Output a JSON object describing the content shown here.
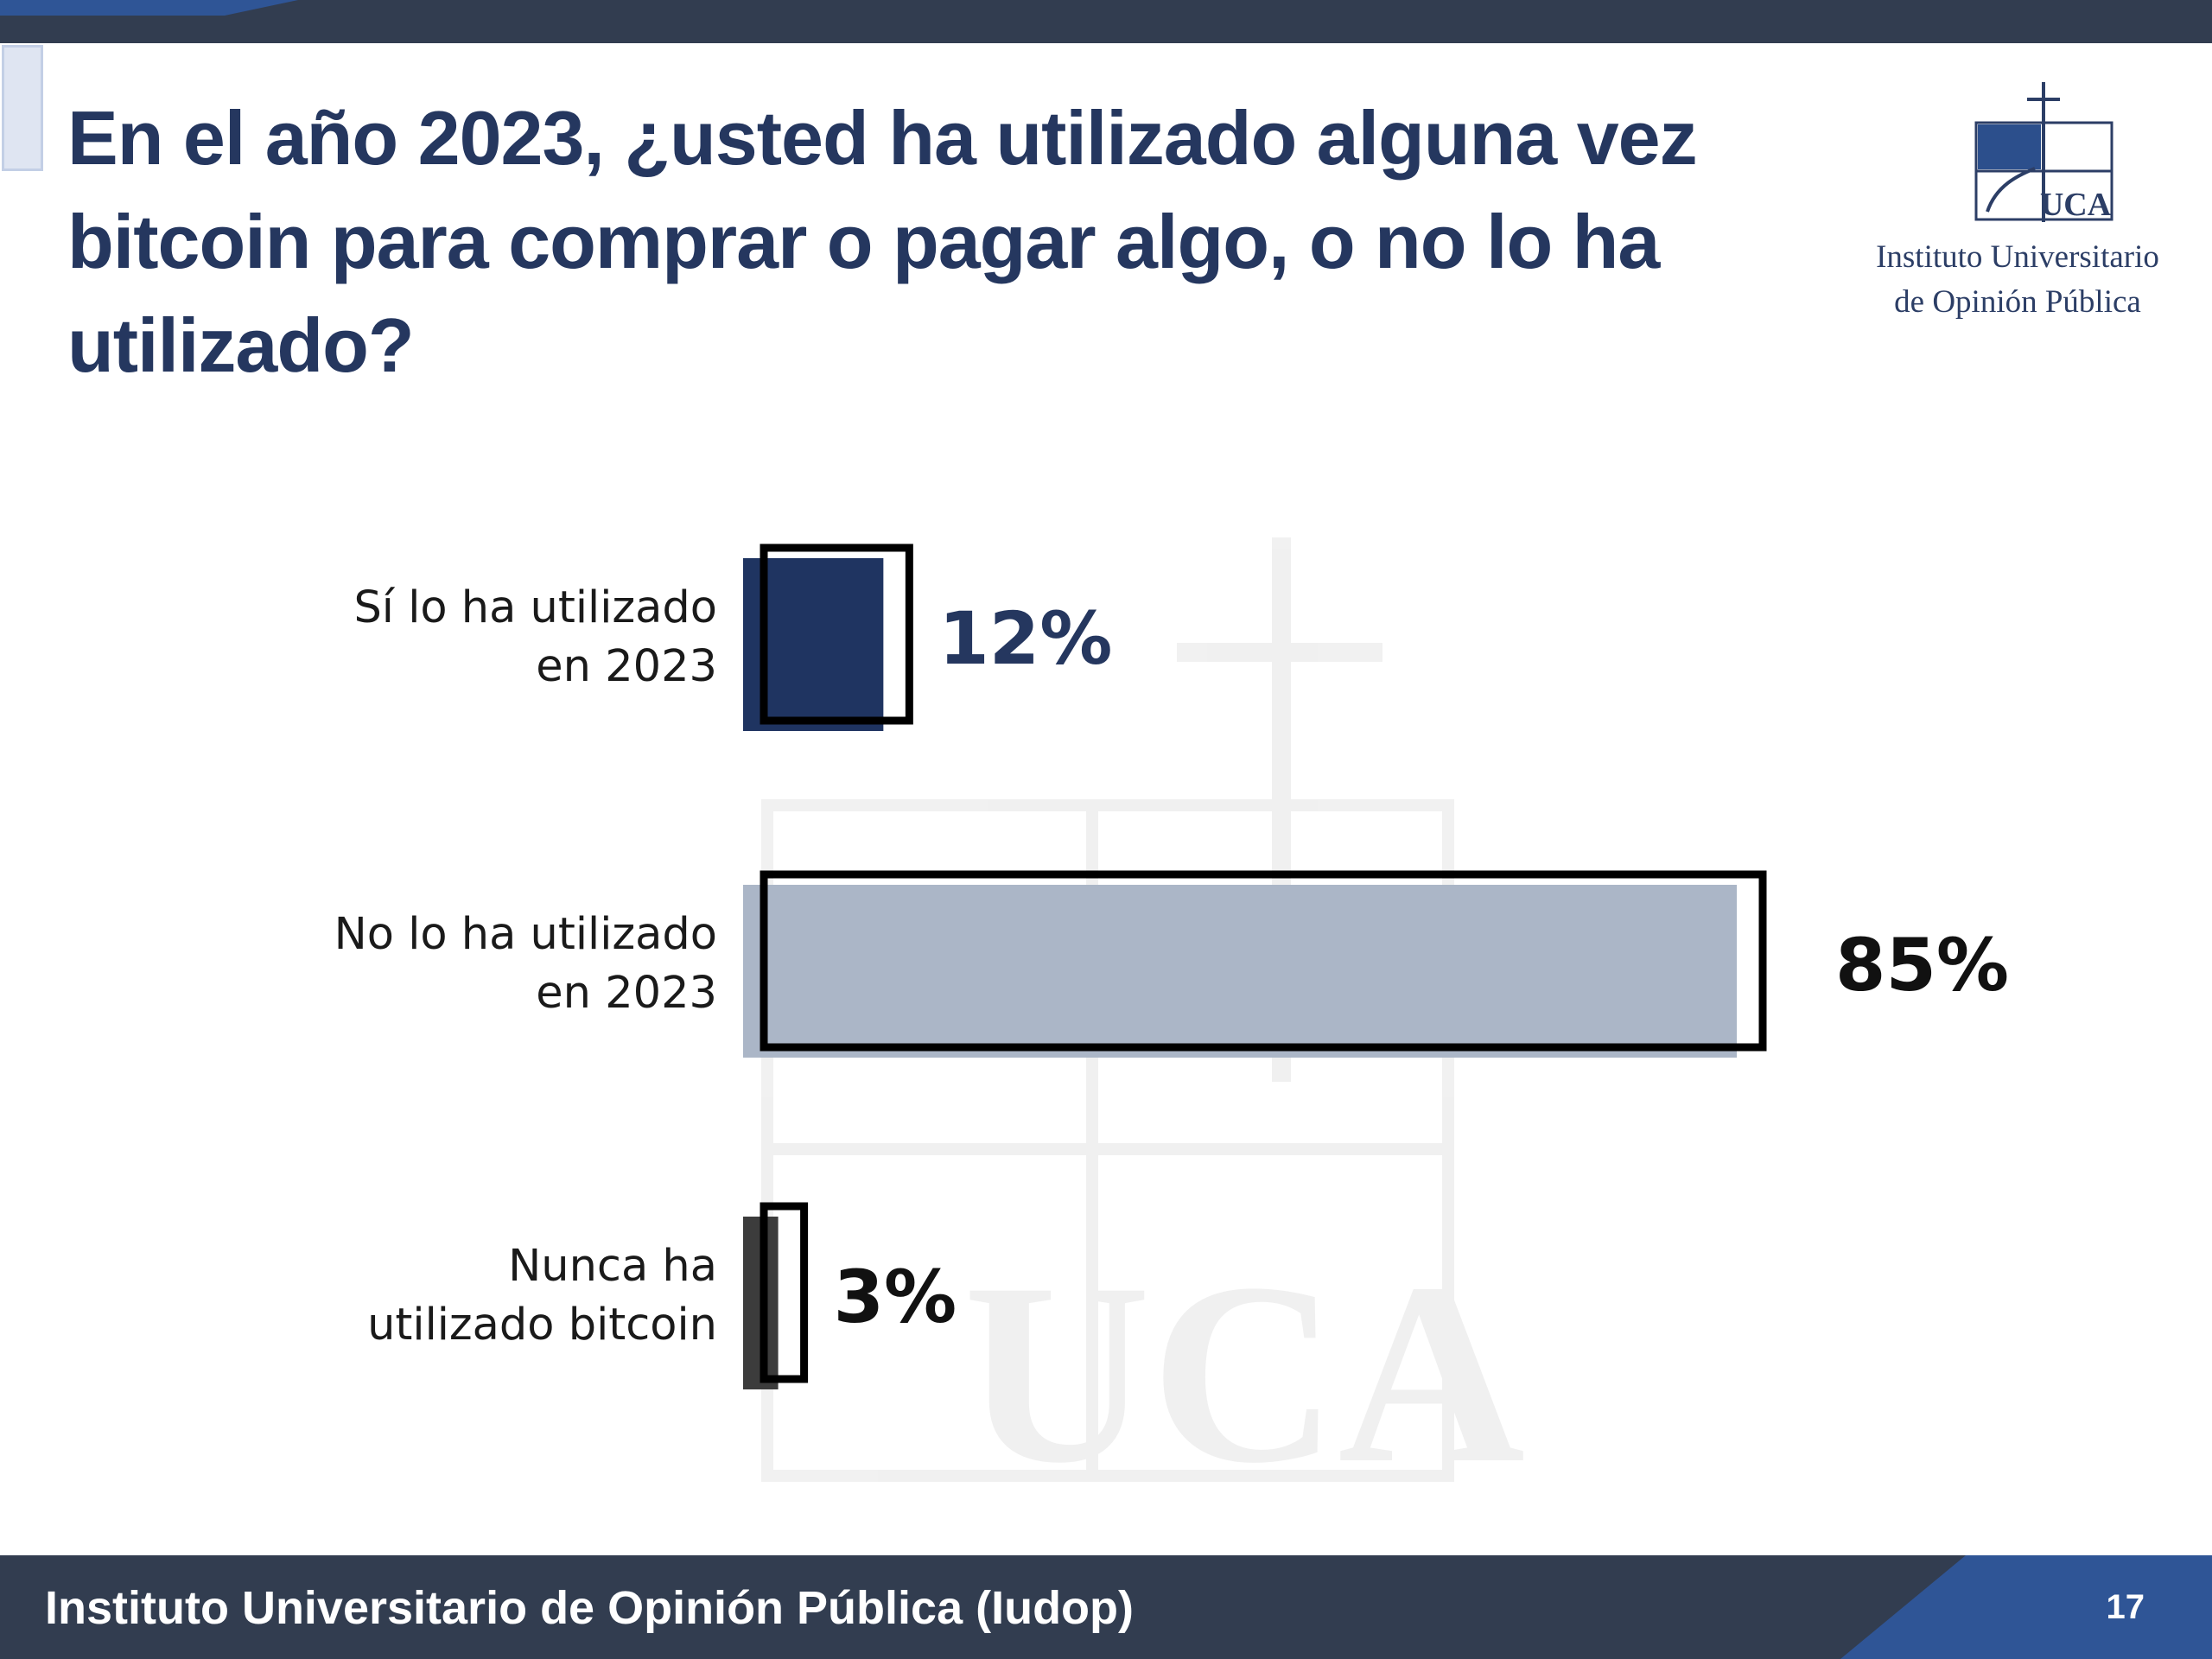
{
  "header": {
    "title": "En el año 2023, ¿usted ha utilizado alguna vez bitcoin para comprar o pagar algo, o no lo ha utilizado?"
  },
  "logo": {
    "name": "Instituto Universitario de Opinión Pública",
    "line1": "Instituto Universitario",
    "line2": "de Opinión Pública",
    "mark_letters": "UCA"
  },
  "footer": {
    "text": "Instituto Universitario de Opinión Pública (Iudop)",
    "page_number": "17"
  },
  "colors": {
    "navy": "#25375f",
    "bar_si": "#1f3461",
    "bar_no": "#abb6c7",
    "bar_nunca": "#3c3c3c",
    "header_bar": "#323d50",
    "accent_blue": "#2f5596"
  },
  "chart_data": {
    "type": "bar",
    "orientation": "horizontal",
    "categories": [
      "Sí lo ha utilizado en 2023",
      "No lo ha utilizado en 2023",
      "Nunca ha utilizado bitcoin"
    ],
    "category_lines": [
      [
        "Sí lo ha utilizado",
        "en 2023"
      ],
      [
        "No lo ha utilizado",
        "en 2023"
      ],
      [
        "Nunca ha",
        "utilizado bitcoin"
      ]
    ],
    "values": [
      12,
      85,
      3
    ],
    "value_labels": [
      "12%",
      "85%",
      "3%"
    ],
    "unit": "%",
    "xlim": [
      0,
      85
    ],
    "grid": false,
    "legend": "none"
  }
}
